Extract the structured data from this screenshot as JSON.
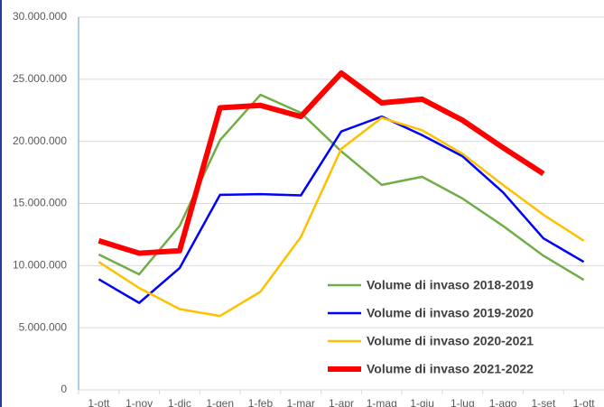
{
  "chart_data": {
    "type": "line",
    "categories": [
      "1-ott",
      "1-nov",
      "1-dic",
      "1-gen",
      "1-feb",
      "1-mar",
      "1-apr",
      "1-mag",
      "1-giu",
      "1-lug",
      "1-ago",
      "1-set",
      "1-ott"
    ],
    "series": [
      {
        "name": "Volume di invaso 2018-2019",
        "color": "#70ad47",
        "values": [
          10900000,
          9300000,
          13200000,
          20100000,
          23750000,
          22300000,
          19200000,
          16500000,
          17150000,
          15400000,
          13200000,
          10800000,
          8850000
        ]
      },
      {
        "name": "Volume di invaso 2019-2020",
        "color": "#0000ff",
        "values": [
          8900000,
          7000000,
          9800000,
          15700000,
          15750000,
          15650000,
          20800000,
          22000000,
          20500000,
          18800000,
          15900000,
          12200000,
          10300000
        ]
      },
      {
        "name": "Volume di invaso 2020-2021",
        "color": "#ffc000",
        "values": [
          10300000,
          8200000,
          6500000,
          5950000,
          7900000,
          12300000,
          19400000,
          21900000,
          20900000,
          19000000,
          16500000,
          14100000,
          12000000
        ]
      },
      {
        "name": "Volume di invaso 2021-2022",
        "color": "#ff0000",
        "values": [
          12000000,
          11000000,
          11200000,
          22700000,
          22900000,
          22000000,
          25500000,
          23100000,
          23400000,
          21700000,
          19500000,
          17400000,
          null
        ]
      }
    ],
    "ylim": [
      0,
      30000000
    ],
    "yticks": [
      0,
      {
        "value": 5000000,
        "label": "5.000.000"
      },
      {
        "value": 10000000,
        "label": "10.000.000"
      },
      {
        "value": 15000000,
        "label": "15.000.000"
      },
      {
        "value": 20000000,
        "label": "20.000.000"
      },
      {
        "value": 25000000,
        "label": "25.000.000"
      },
      {
        "value": 30000000,
        "label": "30.000.000"
      }
    ],
    "grid": true,
    "legend": "lower right"
  }
}
